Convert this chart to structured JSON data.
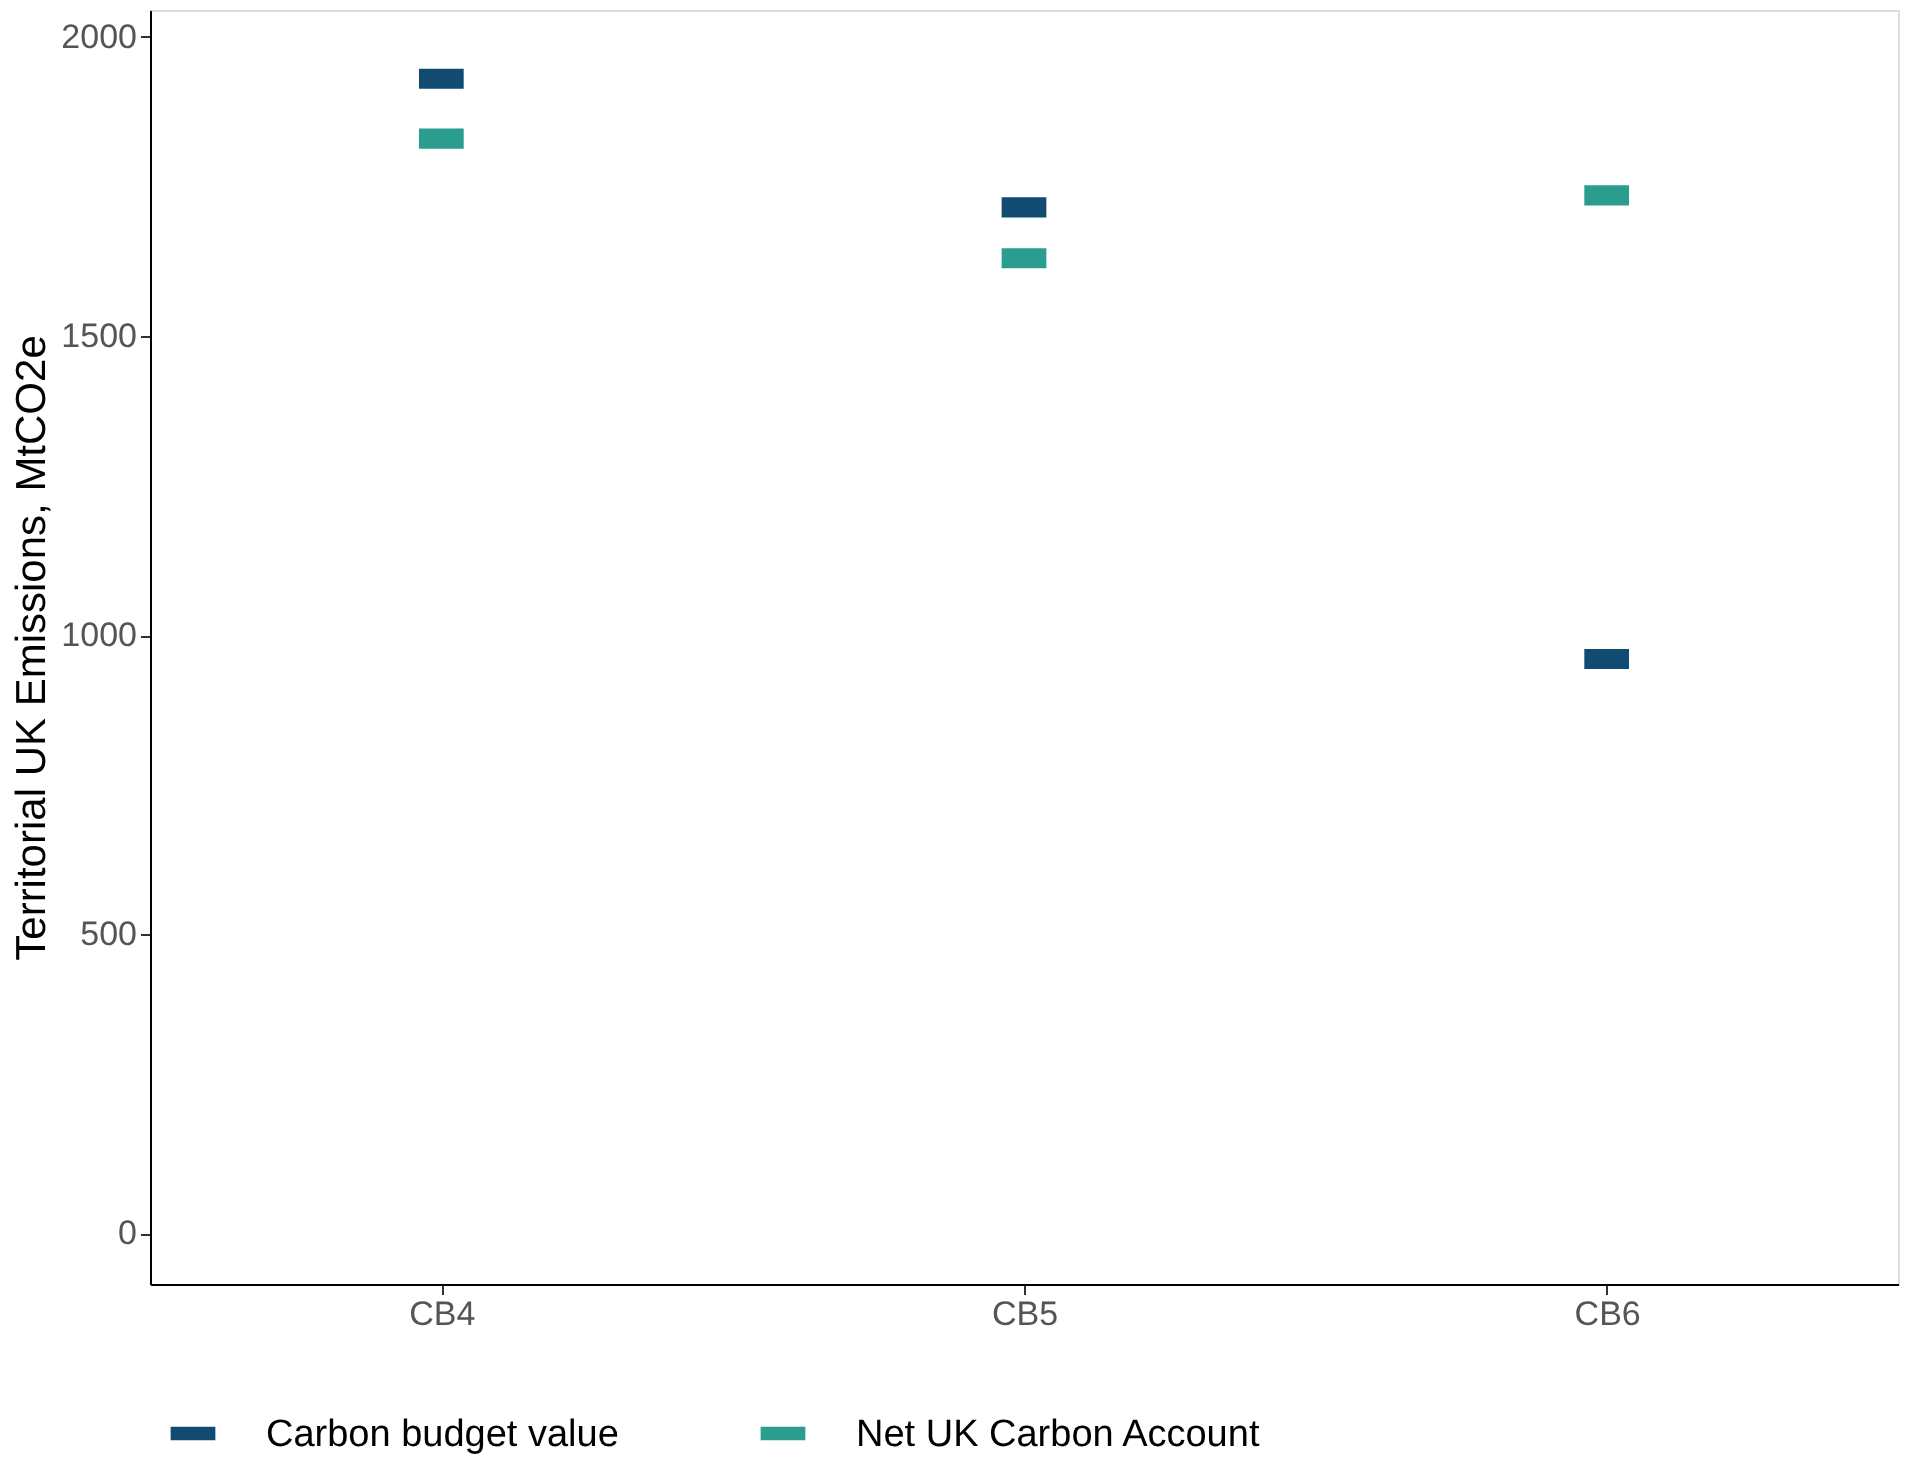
{
  "chart_data": {
    "type": "scatter",
    "ylabel": "Territorial UK Emissions, MtCO2e",
    "categories": [
      "CB4",
      "CB5",
      "CB6"
    ],
    "series": [
      {
        "name": "Carbon budget value",
        "color": "#114b72",
        "values": [
          1930,
          1715,
          960
        ]
      },
      {
        "name": "Net UK Carbon Account",
        "color": "#2a9d8f",
        "values": [
          1830,
          1630,
          1735
        ]
      }
    ],
    "ylim": [
      -85,
      2045
    ],
    "yticks": [
      0,
      500,
      1000,
      1500,
      2000
    ],
    "grid": false,
    "legend": "bottom"
  }
}
